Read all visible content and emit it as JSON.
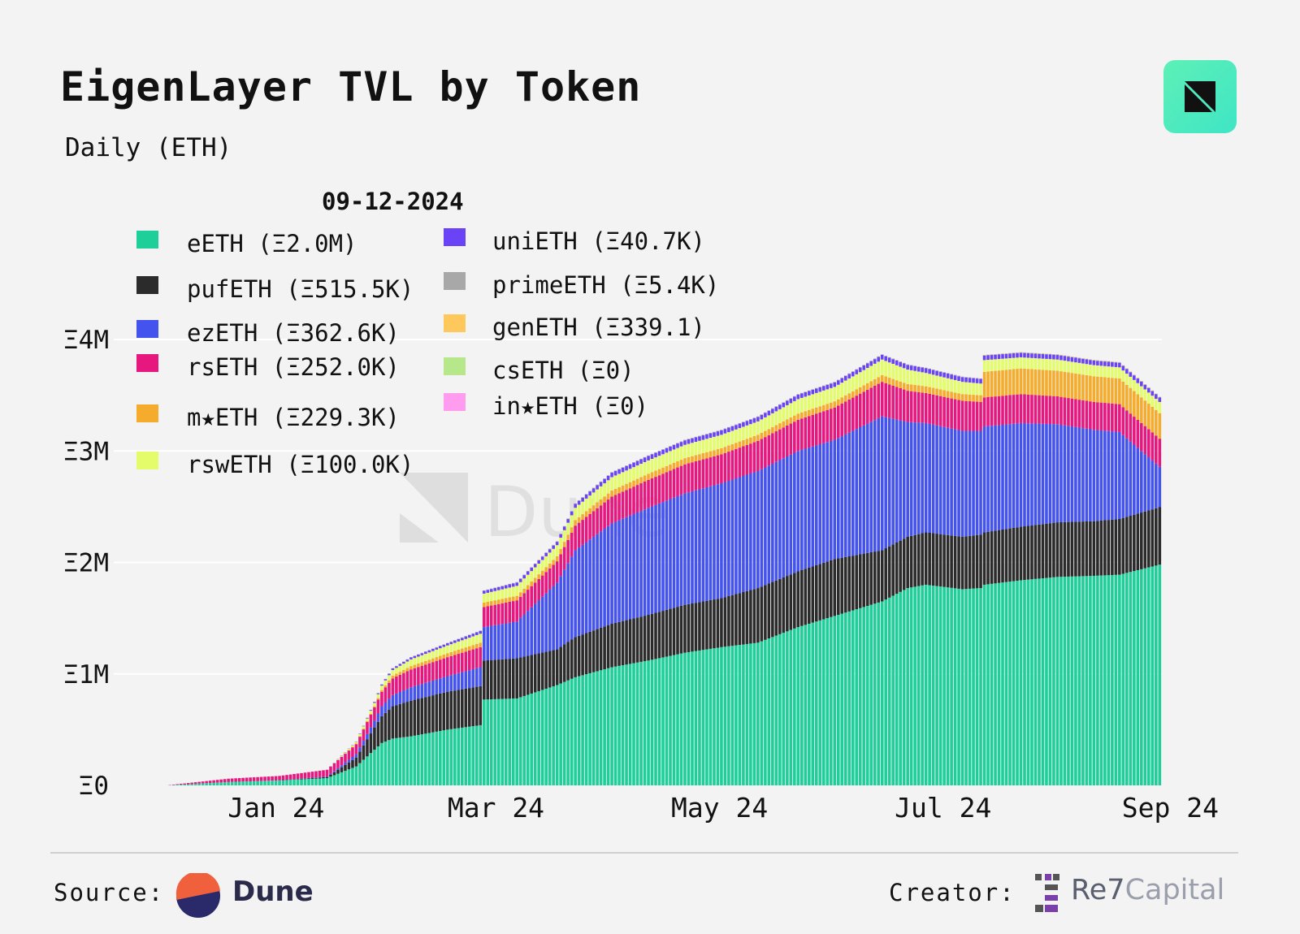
{
  "header": {
    "title": "EigenLayer TVL by Token",
    "subtitle": "Daily (ETH)"
  },
  "footer": {
    "source_label": "Source:",
    "source_name": "Dune",
    "creator_label": "Creator:",
    "creator_name_part1": "Re7",
    "creator_name_part2": "Capital"
  },
  "watermark": "Dune",
  "chart_data": {
    "type": "area",
    "stacked": true,
    "title": "EigenLayer TVL by Token",
    "subtitle": "Daily (ETH)",
    "tooltip_date": "09-12-2024",
    "grid": true,
    "ylim": [
      0,
      4000000
    ],
    "y_ticks": [
      {
        "value": 0,
        "label": "Ξ0"
      },
      {
        "value": 1000000,
        "label": "Ξ1M"
      },
      {
        "value": 2000000,
        "label": "Ξ2M"
      },
      {
        "value": 3000000,
        "label": "Ξ3M"
      },
      {
        "value": 4000000,
        "label": "Ξ4M"
      }
    ],
    "x_ticks": [
      {
        "value": "2024-01-01",
        "label": "Jan 24"
      },
      {
        "value": "2024-03-01",
        "label": "Mar 24"
      },
      {
        "value": "2024-05-01",
        "label": "May 24"
      },
      {
        "value": "2024-07-01",
        "label": "Jul 24"
      },
      {
        "value": "2024-09-01",
        "label": "Sep 24"
      }
    ],
    "legend": [
      {
        "label": "eETH (Ξ2.0M)",
        "color": "#1ecf9a"
      },
      {
        "label": "pufETH (Ξ515.5K)",
        "color": "#2b2b2b"
      },
      {
        "label": "ezETH (Ξ362.6K)",
        "color": "#4452ee"
      },
      {
        "label": "rsETH (Ξ252.0K)",
        "color": "#e6177f"
      },
      {
        "label": "m★ETH (Ξ229.3K)",
        "color": "#f5ac2c"
      },
      {
        "label": "rswETH (Ξ100.0K)",
        "color": "#e4fb6a"
      },
      {
        "label": "uniETH (Ξ40.7K)",
        "color": "#6b43f7"
      },
      {
        "label": "primeETH (Ξ5.4K)",
        "color": "#a8a8a8"
      },
      {
        "label": "genETH (Ξ339.1)",
        "color": "#ffc85c"
      },
      {
        "label": "csETH (Ξ0)",
        "color": "#b7e78b"
      },
      {
        "label": "in★ETH (Ξ0)",
        "color": "#ff9cf0"
      }
    ],
    "dates": [
      "2023-12-01",
      "2023-12-15",
      "2024-01-01",
      "2024-01-15",
      "2024-01-28",
      "2024-02-05",
      "2024-02-10",
      "2024-02-12",
      "2024-02-15",
      "2024-02-20",
      "2024-03-01",
      "2024-03-10",
      "2024-03-11",
      "2024-03-20",
      "2024-03-31",
      "2024-04-05",
      "2024-04-15",
      "2024-04-25",
      "2024-05-05",
      "2024-05-15",
      "2024-05-25",
      "2024-06-05",
      "2024-06-15",
      "2024-06-28",
      "2024-07-05",
      "2024-07-10",
      "2024-07-20",
      "2024-07-25",
      "2024-07-26",
      "2024-08-05",
      "2024-08-15",
      "2024-08-25",
      "2024-09-01",
      "2024-09-12"
    ],
    "series": [
      {
        "name": "eETH",
        "values": [
          0,
          0,
          30000,
          45000,
          65000,
          170000,
          320000,
          380000,
          420000,
          440000,
          500000,
          540000,
          770000,
          780000,
          900000,
          970000,
          1060000,
          1120000,
          1190000,
          1240000,
          1280000,
          1420000,
          1520000,
          1650000,
          1770000,
          1800000,
          1760000,
          1770000,
          1800000,
          1840000,
          1870000,
          1880000,
          1890000,
          1980000
        ]
      },
      {
        "name": "pufETH",
        "values": [
          0,
          0,
          0,
          0,
          10000,
          80000,
          200000,
          240000,
          290000,
          320000,
          340000,
          350000,
          350000,
          360000,
          320000,
          360000,
          390000,
          410000,
          430000,
          440000,
          490000,
          500000,
          510000,
          460000,
          460000,
          470000,
          470000,
          480000,
          470000,
          480000,
          490000,
          490000,
          500000,
          515500
        ]
      },
      {
        "name": "ezETH",
        "values": [
          0,
          0,
          0,
          0,
          5000,
          30000,
          60000,
          90000,
          100000,
          120000,
          140000,
          170000,
          300000,
          330000,
          600000,
          780000,
          900000,
          960000,
          1000000,
          1030000,
          1050000,
          1080000,
          1070000,
          1200000,
          1030000,
          980000,
          950000,
          930000,
          950000,
          930000,
          880000,
          820000,
          780000,
          362600
        ]
      },
      {
        "name": "rsETH",
        "values": [
          0,
          0,
          30000,
          40000,
          60000,
          90000,
          120000,
          130000,
          150000,
          160000,
          170000,
          180000,
          180000,
          190000,
          190000,
          220000,
          240000,
          250000,
          260000,
          260000,
          270000,
          280000,
          290000,
          310000,
          280000,
          270000,
          270000,
          260000,
          260000,
          260000,
          250000,
          250000,
          250000,
          252000
        ]
      },
      {
        "name": "m★ETH",
        "values": [
          0,
          0,
          0,
          0,
          0,
          5000,
          10000,
          15000,
          25000,
          30000,
          35000,
          40000,
          40000,
          40000,
          45000,
          50000,
          55000,
          55000,
          55000,
          55000,
          55000,
          55000,
          55000,
          60000,
          60000,
          60000,
          60000,
          60000,
          230000,
          230000,
          230000,
          230000,
          230000,
          229300
        ]
      },
      {
        "name": "rswETH",
        "values": [
          0,
          0,
          0,
          0,
          0,
          15000,
          30000,
          40000,
          50000,
          60000,
          70000,
          80000,
          80000,
          90000,
          100000,
          110000,
          120000,
          120000,
          120000,
          120000,
          120000,
          130000,
          130000,
          140000,
          130000,
          120000,
          110000,
          105000,
          105000,
          100000,
          100000,
          100000,
          100000,
          100000
        ]
      },
      {
        "name": "uniETH",
        "values": [
          0,
          0,
          0,
          0,
          0,
          3000,
          8000,
          10000,
          15000,
          18000,
          20000,
          25000,
          25000,
          30000,
          30000,
          35000,
          40000,
          40000,
          40000,
          40000,
          40000,
          40000,
          40000,
          42000,
          42000,
          42000,
          42000,
          41000,
          41000,
          41000,
          41000,
          41000,
          41000,
          40700
        ]
      },
      {
        "name": "primeETH",
        "values": [
          0,
          0,
          0,
          0,
          0,
          0,
          1000,
          2000,
          2000,
          3000,
          3000,
          4000,
          4000,
          4000,
          5000,
          5000,
          5000,
          5000,
          5000,
          5000,
          5000,
          5000,
          5000,
          5000,
          5000,
          5000,
          5000,
          5000,
          5000,
          5000,
          5400,
          5400,
          5400,
          5400
        ]
      },
      {
        "name": "genETH",
        "values": [
          0,
          0,
          0,
          0,
          0,
          0,
          0,
          0,
          0,
          0,
          0,
          0,
          0,
          0,
          0,
          0,
          0,
          0,
          0,
          0,
          0,
          0,
          0,
          0,
          0,
          0,
          0,
          0,
          339,
          339,
          339,
          339,
          339,
          339.1
        ]
      },
      {
        "name": "csETH",
        "values": [
          0,
          0,
          0,
          0,
          0,
          0,
          0,
          0,
          0,
          0,
          0,
          0,
          0,
          0,
          0,
          0,
          0,
          0,
          0,
          0,
          0,
          0,
          0,
          0,
          0,
          0,
          0,
          0,
          0,
          0,
          0,
          0,
          0,
          0
        ]
      },
      {
        "name": "in★ETH",
        "values": [
          0,
          0,
          0,
          0,
          0,
          0,
          0,
          0,
          0,
          0,
          0,
          0,
          0,
          0,
          0,
          0,
          0,
          0,
          0,
          0,
          0,
          0,
          0,
          0,
          0,
          0,
          0,
          0,
          0,
          0,
          0,
          0,
          0,
          0
        ]
      }
    ]
  }
}
